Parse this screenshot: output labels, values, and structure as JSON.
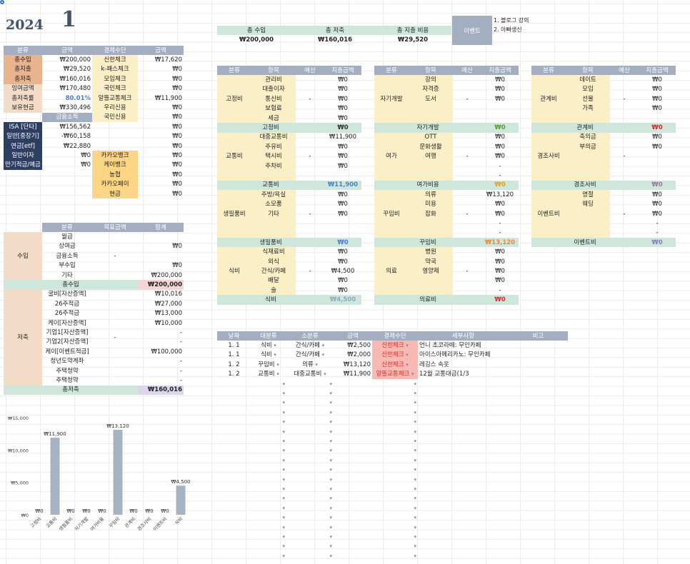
{
  "header": {
    "year": "2024",
    "month": "1"
  },
  "summary": {
    "income_label": "총 수입",
    "saving_label": "총 저축",
    "spend_label": "총 지출 비용",
    "income": "₩200,000",
    "saving": "₩160,016",
    "spend": "₩29,520"
  },
  "events": {
    "label": "이벤트",
    "items": [
      "1. 블로그 강의",
      "2. 아빠생신"
    ]
  },
  "left_summary": {
    "headers": [
      "분류",
      "금액",
      "결제수단",
      "금액"
    ],
    "rows": [
      [
        "총수입",
        "₩200,000",
        "신한체크",
        "₩17,620"
      ],
      [
        "총지출",
        "₩29,520",
        "k-패스체크",
        "₩0"
      ],
      [
        "총저축",
        "₩160,016",
        "모임체크",
        "₩0"
      ],
      [
        "잉여금액",
        "₩170,480",
        "국민체크",
        "₩0"
      ],
      [
        "총저축률",
        "80.01%",
        "알뜰교통체크",
        "₩11,900"
      ],
      [
        "보유현금",
        "₩330,496",
        "우리신용",
        "₩0"
      ]
    ],
    "fin_label": "금융소득",
    "kookmin": "국민신용",
    "kookmin_amount": "₩0",
    "fin_rows": [
      [
        "ISA [단타]",
        "₩156,562",
        "",
        "₩0"
      ],
      [
        "일반[중장기]",
        "-₩60,158",
        "",
        "₩0"
      ],
      [
        "연금[etf]",
        "₩22,880",
        "",
        "₩0"
      ],
      [
        "일반이자",
        "₩0",
        "카카오뱅크",
        "₩0"
      ],
      [
        "만기적금/예금",
        "₩0",
        "케이뱅크",
        "₩0"
      ],
      [
        "",
        "",
        "농협",
        "₩0"
      ],
      [
        "",
        "",
        "카카오페이",
        "₩0"
      ],
      [
        "",
        "",
        "현금",
        "₩0"
      ]
    ]
  },
  "income_table": {
    "headers": [
      "분류",
      "목표금액",
      "합계"
    ],
    "group": "수입",
    "dash": "-",
    "rows": [
      [
        "월급",
        ""
      ],
      [
        "상여금",
        "₩0"
      ],
      [
        "금융소득",
        ""
      ],
      [
        "부수입",
        "₩0"
      ],
      [
        "기타",
        "₩200,000"
      ]
    ],
    "total_label": "총수입",
    "total": "₩200,000"
  },
  "saving_table": {
    "group": "저축",
    "dash": "-",
    "rows": [
      [
        "굴비[자산증액]",
        "₩10,016"
      ],
      [
        "26주적금",
        "₩27,000"
      ],
      [
        "26주적금",
        "₩13,000"
      ],
      [
        "케이[자산증액]",
        "₩10,000"
      ],
      [
        "기업1[자산증액]",
        "-"
      ],
      [
        "기업2[자산증액]",
        "-"
      ],
      [
        "케이[이벤트적금]",
        "₩100,000"
      ],
      [
        "청년도약계좌",
        "-"
      ],
      [
        "주택청약",
        "-"
      ],
      [
        "주택청약",
        "-"
      ]
    ],
    "total_label": "총저축",
    "total": "₩160,016"
  },
  "budget": {
    "headers": [
      "분류",
      "항목",
      "예산",
      "지출금액"
    ],
    "dash": "-",
    "blocks": [
      [
        {
          "cat": "고정비",
          "items": [
            [
              "관리비",
              "₩0"
            ],
            [
              "대출이자",
              "₩0"
            ],
            [
              "통신비",
              "₩0"
            ],
            [
              "보험료",
              "₩0"
            ],
            [
              "세금",
              "₩0"
            ]
          ],
          "total_label": "고정비",
          "total": "₩0",
          "tc": "#333"
        },
        {
          "cat": "교통비",
          "items": [
            [
              "대중교통비",
              "₩11,900"
            ],
            [
              "주유비",
              "₩0"
            ],
            [
              "택시비",
              "₩0"
            ],
            [
              "주차비",
              "₩0"
            ],
            [
              "",
              ""
            ]
          ],
          "total_label": "교통비",
          "total": "₩11,900",
          "tc": "#4a80d0"
        },
        {
          "cat": "생필품비",
          "items": [
            [
              "주방/욕실",
              "₩0"
            ],
            [
              "소모품",
              "₩0"
            ],
            [
              "기타",
              "₩0"
            ],
            [
              "",
              ""
            ],
            [
              "",
              ""
            ]
          ],
          "total_label": "생필품비",
          "total": "₩0",
          "tc": "#4a80d0"
        },
        {
          "cat": "식비",
          "items": [
            [
              "식재료비",
              "₩0"
            ],
            [
              "외식",
              "₩0"
            ],
            [
              "간식/카페",
              "₩4,500"
            ],
            [
              "배달",
              "₩0"
            ],
            [
              "술",
              "₩0"
            ]
          ],
          "total_label": "식비",
          "total": "₩4,500",
          "tc": "#8fa7c0"
        }
      ],
      [
        {
          "cat": "자기개발",
          "items": [
            [
              "강의",
              "₩0"
            ],
            [
              "자격증",
              "₩0"
            ],
            [
              "도서",
              "₩0"
            ],
            [
              "",
              ""
            ],
            [
              "",
              ""
            ]
          ],
          "total_label": "자기개발",
          "total": "₩0",
          "tc": "#5a9a3a"
        },
        {
          "cat": "여가",
          "items": [
            [
              "OTT",
              "₩0"
            ],
            [
              "문화생활",
              "₩0"
            ],
            [
              "여행",
              "₩0"
            ],
            [
              "",
              "-"
            ],
            [
              "",
              "-"
            ]
          ],
          "total_label": "여가비용",
          "total": "₩0",
          "tc": "#e0a020"
        },
        {
          "cat": "꾸밈비",
          "items": [
            [
              "의류",
              "₩13,120"
            ],
            [
              "미용",
              "₩0"
            ],
            [
              "잡화",
              "₩0"
            ],
            [
              "",
              "-"
            ],
            [
              "",
              "-"
            ]
          ],
          "total_label": "꾸밈비",
          "total": "₩13,120",
          "tc": "#e08a40"
        },
        {
          "cat": "의료",
          "items": [
            [
              "병원",
              "₩0"
            ],
            [
              "약국",
              "₩0"
            ],
            [
              "영양제",
              "₩0"
            ],
            [
              "",
              "₩0"
            ],
            [
              "",
              "-"
            ]
          ],
          "total_label": "의료비",
          "total": "₩0",
          "tc": "#d03030"
        }
      ],
      [
        {
          "cat": "관계비",
          "items": [
            [
              "데이트",
              "₩0"
            ],
            [
              "모임",
              "₩0"
            ],
            [
              "선물",
              "₩0"
            ],
            [
              "가족",
              "₩0"
            ],
            [
              "",
              ""
            ]
          ],
          "total_label": "관계비",
          "total": "₩0",
          "tc": "#c03030"
        },
        {
          "cat": "경조사비",
          "items": [
            [
              "축의금",
              "₩0"
            ],
            [
              "부의금",
              "₩0"
            ],
            [
              "",
              ""
            ],
            [
              "",
              ""
            ],
            [
              "",
              ""
            ]
          ],
          "total_label": "경조사비",
          "total": "₩0",
          "tc": "#a070a0"
        },
        {
          "cat": "이벤트비",
          "items": [
            [
              "명절",
              "₩0"
            ],
            [
              "웨딩",
              "₩0"
            ],
            [
              "",
              "₩0"
            ],
            [
              "",
              "-"
            ],
            [
              "",
              "-"
            ]
          ],
          "total_label": "이벤트비",
          "total": "₩0",
          "tc": "#8080c0"
        }
      ]
    ]
  },
  "ledger": {
    "headers": [
      "날짜",
      "대분류",
      "소분류",
      "금액",
      "결제수단",
      "세부사항",
      "비고"
    ],
    "rows": [
      [
        "1. 1",
        "식비",
        "간식/카페",
        "₩2,500",
        "신한체크",
        "언니 초코라떼: 무인카페",
        ""
      ],
      [
        "1. 1",
        "식비",
        "간식/카페",
        "₩2,000",
        "신한체크",
        "아이스아메리카노: 무인카페",
        ""
      ],
      [
        "1. 2",
        "꾸밈비",
        "의류",
        "₩13,120",
        "신한체크",
        "레깅스 속옷",
        ""
      ],
      [
        "1. 2",
        "교통비",
        "대중교통비",
        "₩11,900",
        "알뜰교통체크",
        "12월 교통대금(1/3",
        ""
      ]
    ],
    "empty_rows": 19,
    "dropdown": "▾"
  },
  "chart_data": {
    "type": "bar",
    "categories": [
      "고정비",
      "교통비",
      "생필품비",
      "자기개발",
      "여가비용",
      "꾸밈비",
      "관계비",
      "경조사비",
      "이벤트비",
      "식비"
    ],
    "values": [
      0,
      11900,
      0,
      0,
      0,
      13120,
      0,
      0,
      0,
      4500
    ],
    "labels": [
      "₩0",
      "₩11,900",
      "₩0",
      "₩0",
      "₩0",
      "₩13,120",
      "₩0",
      "₩0",
      "₩0",
      "₩4,500"
    ],
    "yticks": [
      "₩0",
      "₩5,000",
      "₩10,000",
      "₩15,000"
    ],
    "ylim": [
      0,
      15000
    ],
    "color": "#a7b2c3"
  }
}
